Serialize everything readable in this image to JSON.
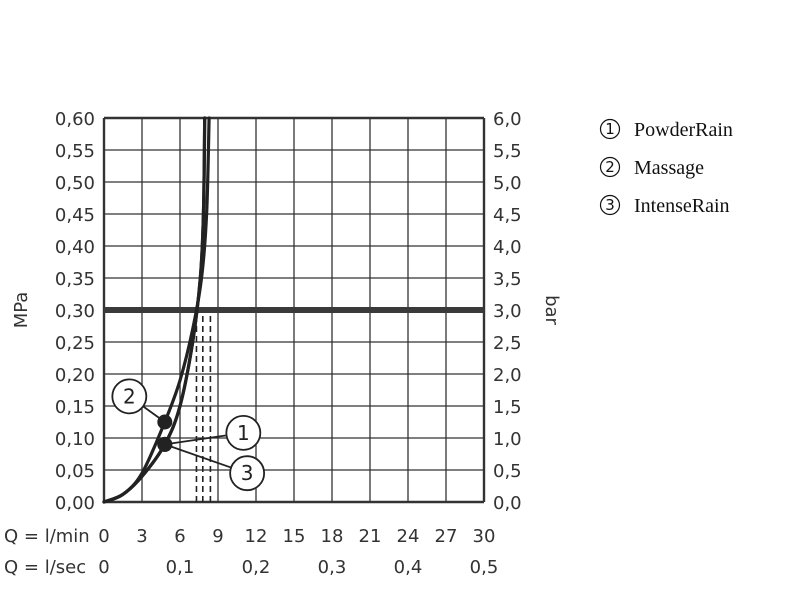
{
  "chart_data": {
    "type": "line",
    "y_left_label": "MPa",
    "y_right_label": "bar",
    "x_row1_label": "Q = l/min",
    "x_row2_label": "Q = l/sec",
    "xlim": [
      0,
      30
    ],
    "ylim": [
      0,
      0.6
    ],
    "x_ticks": [
      "0",
      "3",
      "6",
      "9",
      "12",
      "15",
      "18",
      "21",
      "24",
      "27",
      "30"
    ],
    "x2_ticks": [
      {
        "x": 0,
        "label": "0"
      },
      {
        "x": 6,
        "label": "0,1"
      },
      {
        "x": 12,
        "label": "0,2"
      },
      {
        "x": 18,
        "label": "0,3"
      },
      {
        "x": 24,
        "label": "0,4"
      },
      {
        "x": 30,
        "label": "0,5"
      }
    ],
    "y_left_ticks": [
      "0,00",
      "0,05",
      "0,10",
      "0,15",
      "0,20",
      "0,25",
      "0,30",
      "0,35",
      "0,40",
      "0,45",
      "0,50",
      "0,55",
      "0,60"
    ],
    "y_right_ticks": [
      "0,0",
      "0,5",
      "1,0",
      "1,5",
      "2,0",
      "2,5",
      "3,0",
      "3,5",
      "4,0",
      "4,5",
      "5,0",
      "5,5",
      "6,0"
    ],
    "reference_pressure": 0.3,
    "grid": true,
    "legend_position": "right",
    "series": [
      {
        "key": "1",
        "name": "PowderRain",
        "x": [
          0,
          1.5,
          3,
          4.8,
          6,
          7,
          7.6,
          7.85,
          7.95
        ],
        "y": [
          0,
          0.012,
          0.04,
          0.09,
          0.15,
          0.25,
          0.35,
          0.45,
          0.6
        ],
        "marker": {
          "x": 4.8,
          "y": 0.09
        },
        "label_pos": {
          "x": 11,
          "y": 0.108
        },
        "drop_x": 7.3
      },
      {
        "key": "2",
        "name": "Massage",
        "x": [
          0,
          1.5,
          3,
          4.8,
          6,
          7,
          7.7,
          8.1,
          8.3
        ],
        "y": [
          0,
          0.012,
          0.045,
          0.125,
          0.19,
          0.27,
          0.35,
          0.45,
          0.6
        ],
        "marker": {
          "x": 4.8,
          "y": 0.125
        },
        "label_pos": {
          "x": 2,
          "y": 0.165
        },
        "drop_x": 7.8
      },
      {
        "key": "3",
        "name": "IntenseRain",
        "x": [
          0,
          1.5,
          3,
          4.8,
          6,
          7,
          7.6,
          7.85,
          7.95
        ],
        "y": [
          0,
          0.012,
          0.04,
          0.09,
          0.15,
          0.25,
          0.35,
          0.45,
          0.6
        ],
        "marker": {
          "x": 4.8,
          "y": 0.09
        },
        "label_pos": {
          "x": 11.3,
          "y": 0.045
        },
        "drop_x": 8.4
      }
    ]
  },
  "colors": {
    "grid": "#333333",
    "curve": "#222222",
    "ref_line": "#3a3a3a"
  },
  "legend": [
    {
      "symbol": "1",
      "label": "PowderRain"
    },
    {
      "symbol": "2",
      "label": "Massage"
    },
    {
      "symbol": "3",
      "label": "IntenseRain"
    }
  ]
}
